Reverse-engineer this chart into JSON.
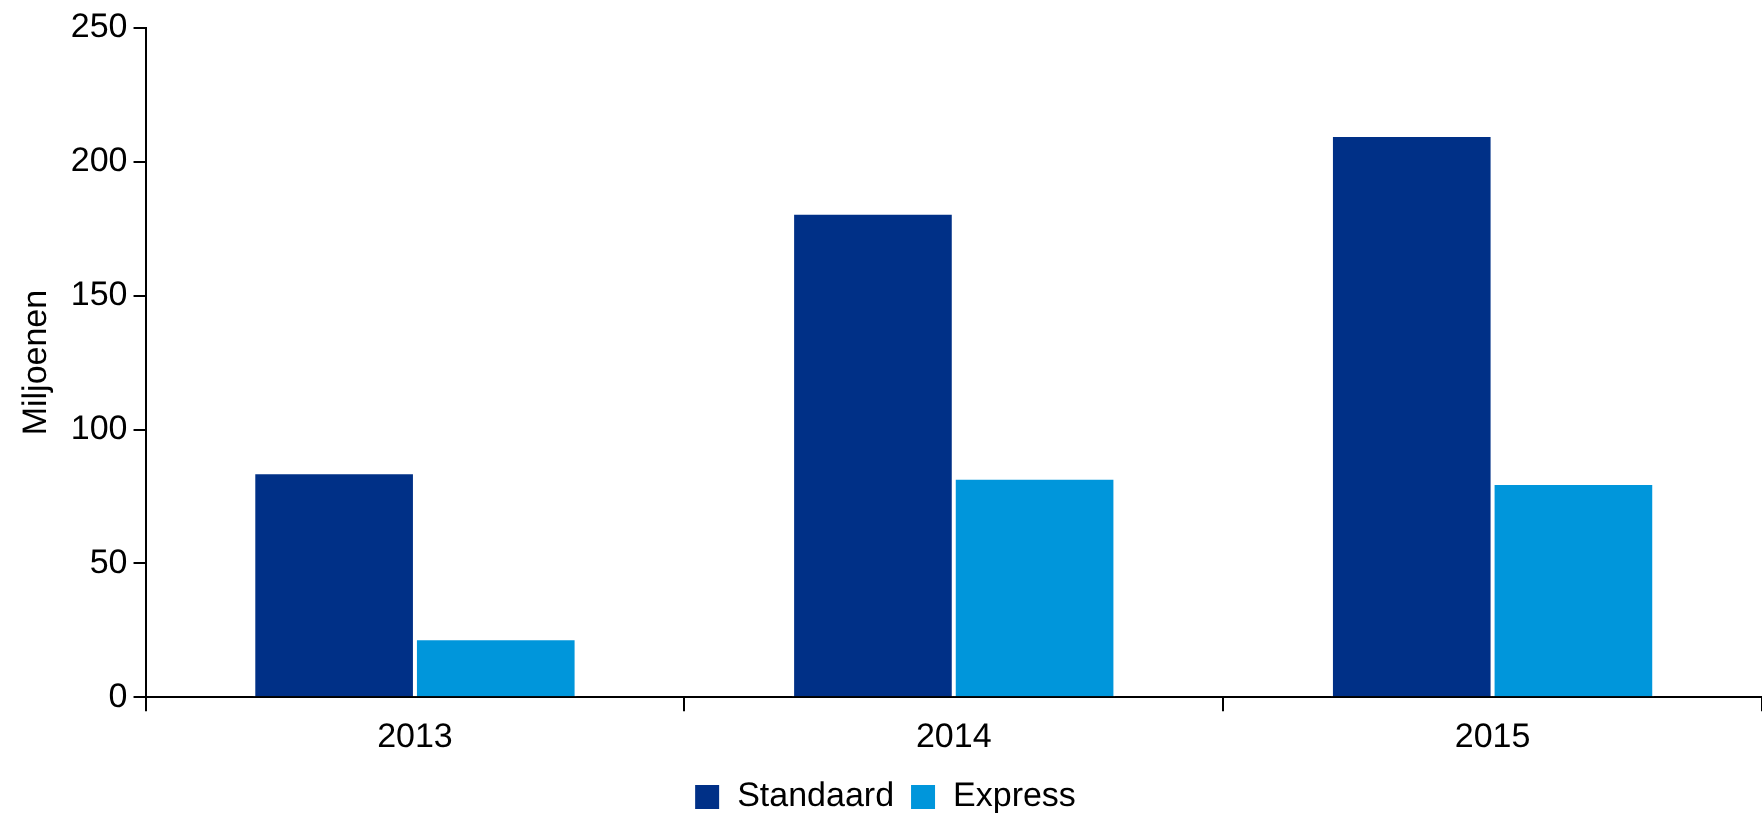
{
  "chart_data": {
    "type": "bar",
    "ylabel": "Miljoenen",
    "categories": [
      "2013",
      "2014",
      "2015"
    ],
    "series": [
      {
        "name": "Standaard",
        "color": "#003087",
        "values": [
          84,
          181,
          210
        ]
      },
      {
        "name": "Express",
        "color": "#0096db",
        "values": [
          22,
          82,
          80
        ]
      }
    ],
    "ylim": [
      0,
      250
    ],
    "yticks": [
      0,
      50,
      100,
      150,
      200,
      250
    ],
    "grid": false,
    "legend": "bottom"
  }
}
